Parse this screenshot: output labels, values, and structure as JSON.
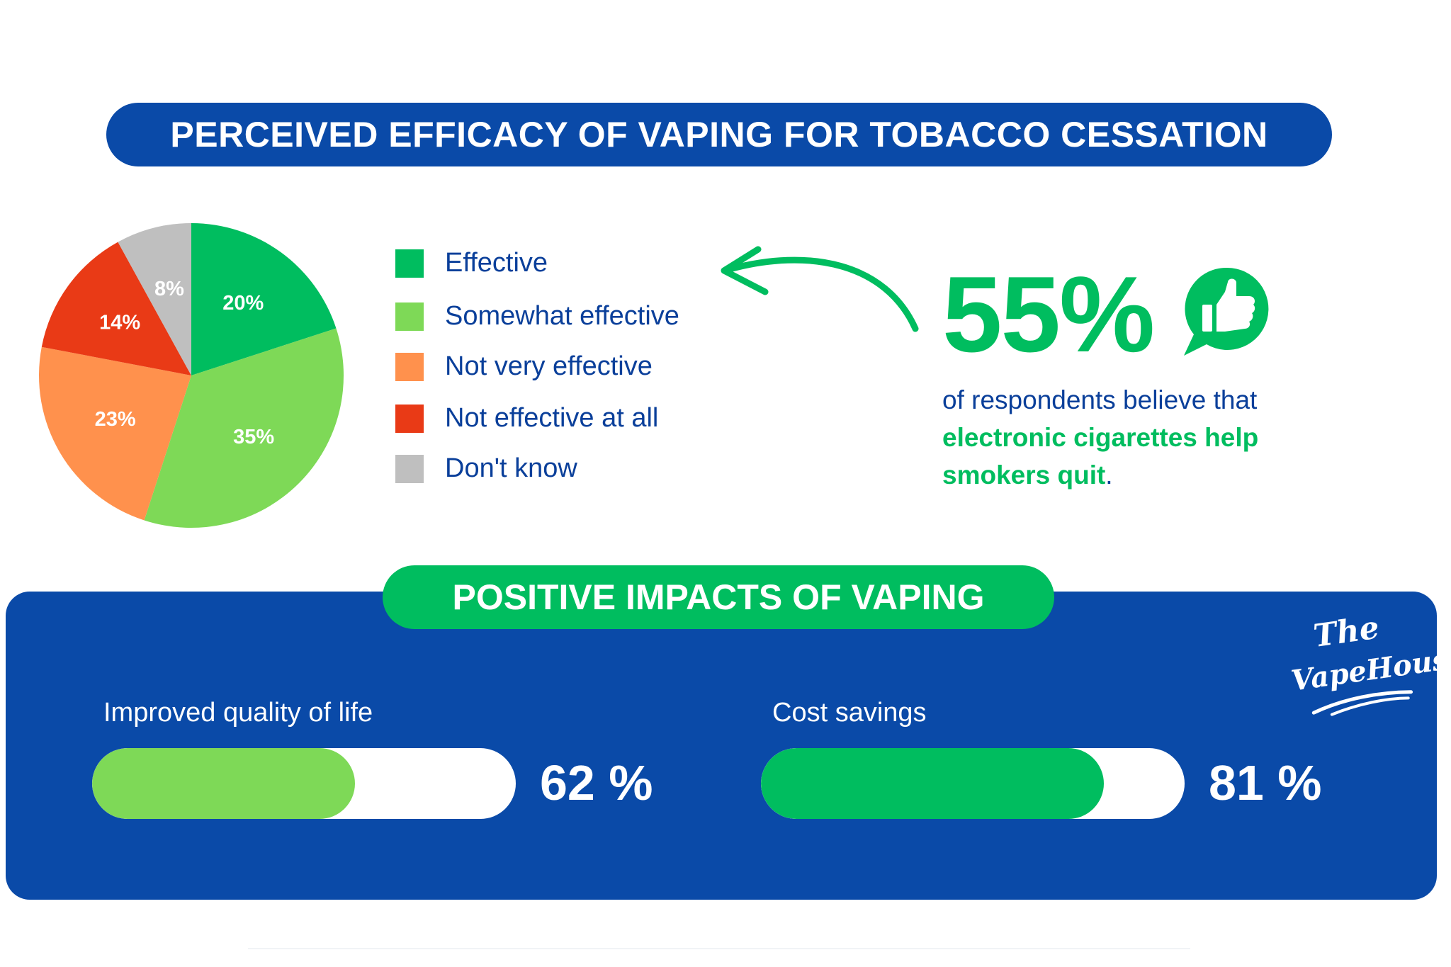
{
  "title": "PERCEIVED EFFICACY OF VAPING FOR TOBACCO CESSATION",
  "chart_data": [
    {
      "type": "pie",
      "categories": [
        "Effective",
        "Somewhat effective",
        "Not very effective",
        "Not effective at all",
        "Don't know"
      ],
      "values": [
        20,
        35,
        23,
        14,
        8
      ],
      "labels": [
        "20%",
        "35%",
        "23%",
        "14%",
        "8%"
      ],
      "colors": [
        "#00bd5f",
        "#7ed957",
        "#ff914d",
        "#e93a16",
        "#bfbfbf"
      ],
      "legend_placement": "right"
    },
    {
      "type": "bar",
      "categories": [
        "Improved quality of life",
        "Cost savings"
      ],
      "values": [
        62,
        81
      ],
      "labels": [
        "62 %",
        "81 %"
      ],
      "colors": [
        "#7ed957",
        "#00bd5f"
      ],
      "ylim": [
        0,
        100
      ]
    }
  ],
  "highlight": {
    "percent": "55%",
    "text_prefix": "of respondents believe that ",
    "text_emphasis": "electronic cigarettes help smokers quit",
    "text_suffix": ".",
    "icon": "thumbs-up-chat-icon"
  },
  "impacts_title": "POSITIVE IMPACTS OF VAPING",
  "logo": {
    "line1": "The",
    "line2": "VapeHouse"
  },
  "colors": {
    "blue": "#0a4aa8",
    "green": "#00bd5f",
    "text_blue": "#0a3f9a"
  }
}
